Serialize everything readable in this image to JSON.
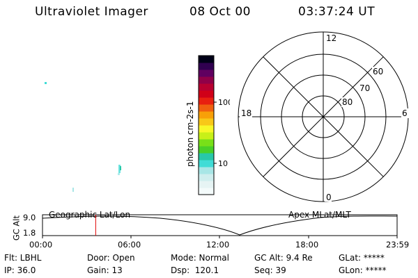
{
  "header": {
    "instrument": "Ultraviolet Imager",
    "date": "08 Oct 00",
    "time": "03:37:24 UT"
  },
  "colorbar": {
    "label": "photon cm-2s-1",
    "tick_100": "100",
    "tick_10": "10",
    "colors": [
      "#f4fbfb",
      "#e6f4f4",
      "#cfeeee",
      "#a8e6e6",
      "#40dcd6",
      "#28c8a8",
      "#48d028",
      "#78e018",
      "#c8f018",
      "#f8f828",
      "#f8c818",
      "#f8a008",
      "#f06010",
      "#e82010",
      "#d00018",
      "#b80030",
      "#900048",
      "#600060",
      "#300050",
      "#000018"
    ]
  },
  "polar": {
    "lat_labels": [
      "80",
      "70",
      "60"
    ],
    "mlt_labels": {
      "top": "12",
      "left": "18",
      "right": "6",
      "bottom": "0"
    }
  },
  "timeline": {
    "left_label": "Geographic Lat/Lon",
    "right_label": "Apex MLat/MLT",
    "axis_title": "GC Alt",
    "y_tick_top": "9.0",
    "y_tick_bottom": "1.8",
    "x_ticks": [
      "00:00",
      "06:00",
      "12:00",
      "18:00",
      "23:59"
    ],
    "current_time_fraction": 0.15
  },
  "info": {
    "flt": "Flt: LBHL",
    "door": "Door: Open",
    "mode": "Mode: Normal",
    "gcalt": "GC Alt: 9.4 Re",
    "glat": "GLat: *****",
    "ip": "IP: 36.0",
    "gain": "Gain: 13",
    "dsp": "Dsp:  120.1",
    "seq": "Seq: 39",
    "glon": "GLon: *****"
  },
  "palette": {
    "line": "#000000",
    "marker": "#e00000",
    "speck": "#40dcd6"
  }
}
